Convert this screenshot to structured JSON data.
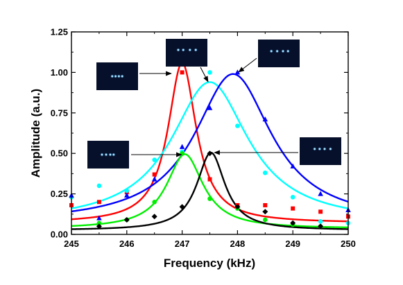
{
  "chart_data": {
    "type": "scatter",
    "title": "",
    "xlabel": "Frequency (kHz)",
    "ylabel": "Amplitude (a.u.)",
    "xlim": [
      245,
      250
    ],
    "ylim": [
      0,
      1.25
    ],
    "xticks": [
      "245",
      "246",
      "247",
      "248",
      "249",
      "250"
    ],
    "yticks": [
      "0.00",
      "0.25",
      "0.50",
      "0.75",
      "1.00",
      "1.25"
    ],
    "grid": false,
    "legend": "none",
    "series": [
      {
        "color": "#ff0000",
        "marker": "square",
        "points": [
          [
            245,
            0.18
          ],
          [
            245.5,
            0.2
          ],
          [
            246,
            0.26
          ],
          [
            246.5,
            0.37
          ],
          [
            247,
            1.0
          ],
          [
            247.5,
            0.34
          ],
          [
            248,
            0.18
          ],
          [
            248.5,
            0.18
          ],
          [
            249,
            0.16
          ],
          [
            249.5,
            0.14
          ],
          [
            250,
            0.11
          ]
        ],
        "fit": {
          "peak": 247.0,
          "amplitude": 0.99,
          "width": 0.62,
          "offset": 0.07
        }
      },
      {
        "color": "#00ffff",
        "marker": "circle",
        "points": [
          [
            245,
            0.23
          ],
          [
            245.5,
            0.3
          ],
          [
            246,
            0.27
          ],
          [
            246.5,
            0.46
          ],
          [
            247,
            0.51
          ],
          [
            247.5,
            1.0
          ],
          [
            248,
            0.67
          ],
          [
            248.5,
            0.38
          ],
          [
            249,
            0.23
          ],
          [
            249.5,
            0.08
          ],
          [
            250,
            0.07
          ]
        ],
        "fit": {
          "peak": 247.5,
          "amplitude": 0.87,
          "width": 1.7,
          "offset": 0.07
        }
      },
      {
        "color": "#0000ff",
        "marker": "triangle",
        "points": [
          [
            245,
            0.24
          ],
          [
            245.5,
            0.1
          ],
          [
            246,
            0.24
          ],
          [
            246.5,
            0.34
          ],
          [
            247,
            0.54
          ],
          [
            247.5,
            0.78
          ],
          [
            248,
            1.0
          ],
          [
            248.5,
            0.71
          ],
          [
            249,
            0.42
          ],
          [
            249.5,
            0.25
          ],
          [
            250,
            0.15
          ]
        ],
        "fit": {
          "peak": 247.92,
          "amplitude": 0.92,
          "width": 1.7,
          "offset": 0.07
        }
      },
      {
        "color": "#00ee00",
        "marker": "circle",
        "points": [
          [
            245.5,
            0.07
          ],
          [
            246,
            0.09
          ],
          [
            246.5,
            0.2
          ],
          [
            247,
            0.5
          ],
          [
            247.5,
            0.22
          ],
          [
            248,
            0.16
          ],
          [
            248.5,
            0.09
          ],
          [
            249,
            0.06
          ],
          [
            249.5,
            0.05
          ]
        ],
        "fit": {
          "peak": 247.05,
          "amplitude": 0.46,
          "width": 0.8,
          "offset": 0.035
        }
      },
      {
        "color": "#000000",
        "marker": "diamond",
        "points": [
          [
            245.5,
            0.05
          ],
          [
            246,
            0.09
          ],
          [
            246.5,
            0.11
          ],
          [
            247,
            0.17
          ],
          [
            247.5,
            0.5
          ],
          [
            248,
            0.17
          ],
          [
            248.5,
            0.14
          ],
          [
            249,
            0.07
          ],
          [
            249.5,
            0.05
          ]
        ],
        "fit": {
          "peak": 247.52,
          "amplitude": 0.48,
          "width": 0.62,
          "offset": 0.025
        }
      }
    ]
  }
}
